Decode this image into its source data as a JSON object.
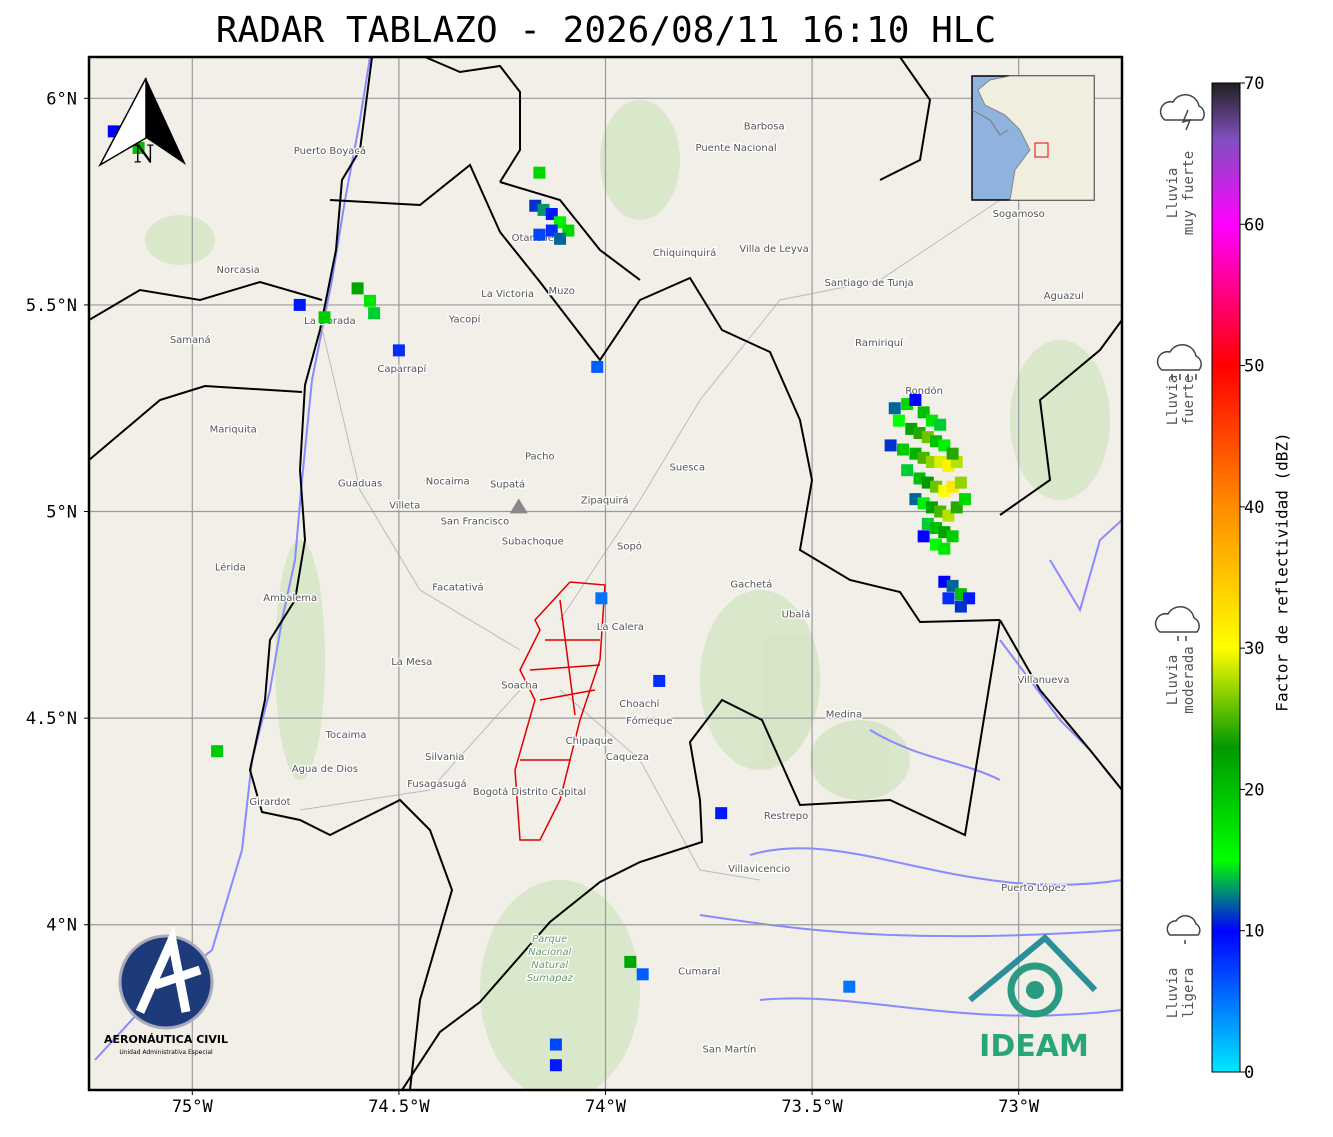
{
  "title": "RADAR TABLAZO - 2026/08/11 16:10 HLC",
  "map": {
    "lonlim": [
      -75.25,
      -72.75
    ],
    "latlim": [
      3.6,
      6.1
    ],
    "lonticks": [
      {
        "value": -75,
        "label": "75°W"
      },
      {
        "value": -74.5,
        "label": "74.5°W"
      },
      {
        "value": -74,
        "label": "74°W"
      },
      {
        "value": -73.5,
        "label": "73.5°W"
      },
      {
        "value": -73,
        "label": "73°W"
      }
    ],
    "latticks": [
      {
        "value": 6,
        "label": "6°N"
      },
      {
        "value": 5.5,
        "label": "5.5°N"
      },
      {
        "value": 5,
        "label": "5°N"
      },
      {
        "value": 4.5,
        "label": "4.5°N"
      },
      {
        "value": 4,
        "label": "4°N"
      }
    ],
    "grid": true,
    "north_label": "N",
    "radar_site": {
      "lon": -74.21,
      "lat": 5.01
    },
    "places": [
      {
        "name": "Villavicencio",
        "lon": -73.628,
        "lat": 4.128
      },
      {
        "name": "Villa de Leyva",
        "lon": -73.592,
        "lat": 5.628
      },
      {
        "name": "Santiago de Tunja",
        "lon": -73.362,
        "lat": 5.546
      },
      {
        "name": "Sogamoso",
        "lon": -73.0,
        "lat": 5.713
      },
      {
        "name": "Zipaquirá",
        "lon": -74.002,
        "lat": 5.019
      },
      {
        "name": "Facatativá",
        "lon": -74.357,
        "lat": 4.809
      },
      {
        "name": "Fusagasugá",
        "lon": -74.408,
        "lat": 4.333
      },
      {
        "name": "Girardot",
        "lon": -74.812,
        "lat": 4.29
      },
      {
        "name": "La Dorada",
        "lon": -74.667,
        "lat": 5.454
      },
      {
        "name": "Mariquita",
        "lon": -74.901,
        "lat": 5.191
      },
      {
        "name": "Chiquinquirá",
        "lon": -73.809,
        "lat": 5.618
      },
      {
        "name": "Muzo",
        "lon": -74.106,
        "lat": 5.527
      },
      {
        "name": "Pacho",
        "lon": -74.159,
        "lat": 5.126
      },
      {
        "name": "Guaduas",
        "lon": -74.594,
        "lat": 5.06
      },
      {
        "name": "Suesca",
        "lon": -73.802,
        "lat": 5.099
      },
      {
        "name": "Gachetá",
        "lon": -73.647,
        "lat": 4.816
      },
      {
        "name": "La Calera",
        "lon": -73.964,
        "lat": 4.713
      },
      {
        "name": "Chipaque",
        "lon": -74.039,
        "lat": 4.437
      },
      {
        "name": "Caqueza",
        "lon": -73.947,
        "lat": 4.399
      },
      {
        "name": "Medina",
        "lon": -73.423,
        "lat": 4.502
      },
      {
        "name": "Restrepo",
        "lon": -73.563,
        "lat": 4.256
      },
      {
        "name": "Puerto López",
        "lon": -72.964,
        "lat": 4.082
      },
      {
        "name": "Villanueva",
        "lon": -72.94,
        "lat": 4.585
      },
      {
        "name": "Ubalá",
        "lon": -73.539,
        "lat": 4.744
      },
      {
        "name": "Puerto Boyacá",
        "lon": -74.667,
        "lat": 5.865
      },
      {
        "name": "La Victoria",
        "lon": -74.237,
        "lat": 5.519
      },
      {
        "name": "Otanche",
        "lon": -74.176,
        "lat": 5.655
      },
      {
        "name": "Barbosa",
        "lon": -73.616,
        "lat": 5.925
      },
      {
        "name": "Puente Nacional",
        "lon": -73.684,
        "lat": 5.872
      },
      {
        "name": "Tocaima",
        "lon": -74.628,
        "lat": 4.452
      },
      {
        "name": "Agua de Dios",
        "lon": -74.679,
        "lat": 4.37
      },
      {
        "name": "Silvania",
        "lon": -74.389,
        "lat": 4.399
      },
      {
        "name": "Villeta",
        "lon": -74.486,
        "lat": 5.007
      },
      {
        "name": "La Mesa",
        "lon": -74.469,
        "lat": 4.628
      },
      {
        "name": "Lérida",
        "lon": -74.908,
        "lat": 4.857
      },
      {
        "name": "Ambalema",
        "lon": -74.763,
        "lat": 4.783
      },
      {
        "name": "Bogotá Distrito Capital",
        "lon": -74.184,
        "lat": 4.314
      },
      {
        "name": "San Martín",
        "lon": -73.7,
        "lat": 3.691
      },
      {
        "name": "Cumaral",
        "lon": -73.773,
        "lat": 3.879
      },
      {
        "name": "Aguazul",
        "lon": -72.891,
        "lat": 5.514
      },
      {
        "name": "Rondón",
        "lon": -73.229,
        "lat": 5.285
      },
      {
        "name": "Ramiriquí",
        "lon": -73.338,
        "lat": 5.401
      },
      {
        "name": "Fómeque",
        "lon": -73.894,
        "lat": 4.486
      },
      {
        "name": "Choachí",
        "lon": -73.918,
        "lat": 4.527
      },
      {
        "name": "Soacha",
        "lon": -74.208,
        "lat": 4.572
      },
      {
        "name": "Sopó",
        "lon": -73.942,
        "lat": 4.908
      },
      {
        "name": "Subachoque",
        "lon": -74.176,
        "lat": 4.92
      },
      {
        "name": "San Francisco",
        "lon": -74.316,
        "lat": 4.969
      },
      {
        "name": "Supatá",
        "lon": -74.237,
        "lat": 5.058
      },
      {
        "name": "Nocaima",
        "lon": -74.382,
        "lat": 5.065
      },
      {
        "name": "Yacopí",
        "lon": -74.341,
        "lat": 5.457
      },
      {
        "name": "Caparrapí",
        "lon": -74.493,
        "lat": 5.338
      },
      {
        "name": "Samaná",
        "lon": -75.005,
        "lat": 5.408
      },
      {
        "name": "Norcasia",
        "lon": -74.889,
        "lat": 5.577
      }
    ],
    "park_label": [
      "Parque",
      "Nacional",
      "Natural",
      "Sumapaz"
    ],
    "park_site": {
      "lon": -74.135,
      "lat": 3.9
    }
  },
  "radar": {
    "cells": [
      {
        "lon": -73.3,
        "lat": 5.25,
        "dbz": 12
      },
      {
        "lon": -73.27,
        "lat": 5.26,
        "dbz": 18
      },
      {
        "lon": -73.25,
        "lat": 5.27,
        "dbz": 10
      },
      {
        "lon": -73.23,
        "lat": 5.24,
        "dbz": 20
      },
      {
        "lon": -73.21,
        "lat": 5.22,
        "dbz": 17
      },
      {
        "lon": -73.19,
        "lat": 5.21,
        "dbz": 14
      },
      {
        "lon": -73.29,
        "lat": 5.22,
        "dbz": 15
      },
      {
        "lon": -73.26,
        "lat": 5.2,
        "dbz": 22
      },
      {
        "lon": -73.24,
        "lat": 5.19,
        "dbz": 24
      },
      {
        "lon": -73.22,
        "lat": 5.18,
        "dbz": 26
      },
      {
        "lon": -73.2,
        "lat": 5.17,
        "dbz": 20
      },
      {
        "lon": -73.18,
        "lat": 5.16,
        "dbz": 16
      },
      {
        "lon": -73.31,
        "lat": 5.16,
        "dbz": 11
      },
      {
        "lon": -73.28,
        "lat": 5.15,
        "dbz": 19
      },
      {
        "lon": -73.25,
        "lat": 5.14,
        "dbz": 21
      },
      {
        "lon": -73.23,
        "lat": 5.13,
        "dbz": 25
      },
      {
        "lon": -73.21,
        "lat": 5.12,
        "dbz": 27
      },
      {
        "lon": -73.19,
        "lat": 5.12,
        "dbz": 29
      },
      {
        "lon": -73.17,
        "lat": 5.11,
        "dbz": 31
      },
      {
        "lon": -73.15,
        "lat": 5.12,
        "dbz": 28
      },
      {
        "lon": -73.16,
        "lat": 5.14,
        "dbz": 24
      },
      {
        "lon": -73.27,
        "lat": 5.1,
        "dbz": 14
      },
      {
        "lon": -73.24,
        "lat": 5.08,
        "dbz": 20
      },
      {
        "lon": -73.22,
        "lat": 5.07,
        "dbz": 23
      },
      {
        "lon": -73.2,
        "lat": 5.06,
        "dbz": 26
      },
      {
        "lon": -73.18,
        "lat": 5.05,
        "dbz": 30
      },
      {
        "lon": -73.16,
        "lat": 5.06,
        "dbz": 32
      },
      {
        "lon": -73.14,
        "lat": 5.07,
        "dbz": 27
      },
      {
        "lon": -73.25,
        "lat": 5.03,
        "dbz": 12
      },
      {
        "lon": -73.23,
        "lat": 5.02,
        "dbz": 16
      },
      {
        "lon": -73.21,
        "lat": 5.01,
        "dbz": 22
      },
      {
        "lon": -73.19,
        "lat": 5.0,
        "dbz": 25
      },
      {
        "lon": -73.17,
        "lat": 4.99,
        "dbz": 28
      },
      {
        "lon": -73.15,
        "lat": 5.01,
        "dbz": 24
      },
      {
        "lon": -73.13,
        "lat": 5.03,
        "dbz": 18
      },
      {
        "lon": -73.22,
        "lat": 4.97,
        "dbz": 14
      },
      {
        "lon": -73.2,
        "lat": 4.96,
        "dbz": 20
      },
      {
        "lon": -73.18,
        "lat": 4.95,
        "dbz": 22
      },
      {
        "lon": -73.16,
        "lat": 4.94,
        "dbz": 19
      },
      {
        "lon": -73.2,
        "lat": 4.92,
        "dbz": 15
      },
      {
        "lon": -73.18,
        "lat": 4.91,
        "dbz": 17
      },
      {
        "lon": -73.23,
        "lat": 4.94,
        "dbz": 10
      },
      {
        "lon": -73.18,
        "lat": 4.83,
        "dbz": 10
      },
      {
        "lon": -73.16,
        "lat": 4.82,
        "dbz": 12
      },
      {
        "lon": -73.14,
        "lat": 4.8,
        "dbz": 20
      },
      {
        "lon": -73.12,
        "lat": 4.79,
        "dbz": 9
      },
      {
        "lon": -73.17,
        "lat": 4.79,
        "dbz": 8
      },
      {
        "lon": -73.14,
        "lat": 4.77,
        "dbz": 11
      },
      {
        "lon": -74.17,
        "lat": 5.74,
        "dbz": 11
      },
      {
        "lon": -74.15,
        "lat": 5.73,
        "dbz": 13
      },
      {
        "lon": -74.13,
        "lat": 5.72,
        "dbz": 9
      },
      {
        "lon": -74.11,
        "lat": 5.7,
        "dbz": 16
      },
      {
        "lon": -74.09,
        "lat": 5.68,
        "dbz": 18
      },
      {
        "lon": -74.13,
        "lat": 5.68,
        "dbz": 8
      },
      {
        "lon": -74.16,
        "lat": 5.67,
        "dbz": 7
      },
      {
        "lon": -74.11,
        "lat": 5.66,
        "dbz": 12
      },
      {
        "lon": -74.16,
        "lat": 5.82,
        "dbz": 18
      },
      {
        "lon": -74.74,
        "lat": 5.5,
        "dbz": 9
      },
      {
        "lon": -74.68,
        "lat": 5.47,
        "dbz": 19
      },
      {
        "lon": -74.6,
        "lat": 5.54,
        "dbz": 22
      },
      {
        "lon": -74.57,
        "lat": 5.51,
        "dbz": 17
      },
      {
        "lon": -74.56,
        "lat": 5.48,
        "dbz": 14
      },
      {
        "lon": -74.5,
        "lat": 5.39,
        "dbz": 8
      },
      {
        "lon": -74.02,
        "lat": 5.35,
        "dbz": 6
      },
      {
        "lon": -74.01,
        "lat": 4.79,
        "dbz": 5
      },
      {
        "lon": -73.87,
        "lat": 4.59,
        "dbz": 8
      },
      {
        "lon": -73.72,
        "lat": 4.27,
        "dbz": 9
      },
      {
        "lon": -74.94,
        "lat": 4.42,
        "dbz": 19
      },
      {
        "lon": -73.94,
        "lat": 3.91,
        "dbz": 22
      },
      {
        "lon": -73.91,
        "lat": 3.88,
        "dbz": 6
      },
      {
        "lon": -73.41,
        "lat": 3.85,
        "dbz": 5
      },
      {
        "lon": -74.12,
        "lat": 3.71,
        "dbz": 7
      },
      {
        "lon": -74.12,
        "lat": 3.66,
        "dbz": 9
      },
      {
        "lon": -75.19,
        "lat": 5.92,
        "dbz": 10
      },
      {
        "lon": -75.13,
        "lat": 5.88,
        "dbz": 20
      }
    ]
  },
  "colorbar": {
    "label": "Factor de reflectividad (dBZ)",
    "lim": [
      0,
      70
    ],
    "ticks": [
      0,
      10,
      20,
      30,
      40,
      50,
      60,
      70
    ],
    "stops": [
      {
        "value": 0,
        "color": "#00e8ff"
      },
      {
        "value": 10,
        "color": "#0000ff"
      },
      {
        "value": 15,
        "color": "#00ff00"
      },
      {
        "value": 23,
        "color": "#009900"
      },
      {
        "value": 30,
        "color": "#ffff00"
      },
      {
        "value": 40,
        "color": "#ff8c00"
      },
      {
        "value": 50,
        "color": "#ff0000"
      },
      {
        "value": 60,
        "color": "#ff00ff"
      },
      {
        "value": 66,
        "color": "#8050c0"
      },
      {
        "value": 70,
        "color": "#202020"
      }
    ]
  },
  "rain_categories": [
    {
      "lines": [
        "Lluvia",
        "muy fuerte"
      ]
    },
    {
      "lines": [
        "Lluvia",
        "fuerte"
      ]
    },
    {
      "lines": [
        "Lluvia",
        "moderada"
      ]
    },
    {
      "lines": [
        "Lluvia",
        "ligera"
      ]
    }
  ],
  "logos": {
    "aerocivil": [
      "AERONÁUTICA CIVIL",
      "Unidad Administrativa Especial"
    ],
    "ideam": "IDEAM"
  }
}
